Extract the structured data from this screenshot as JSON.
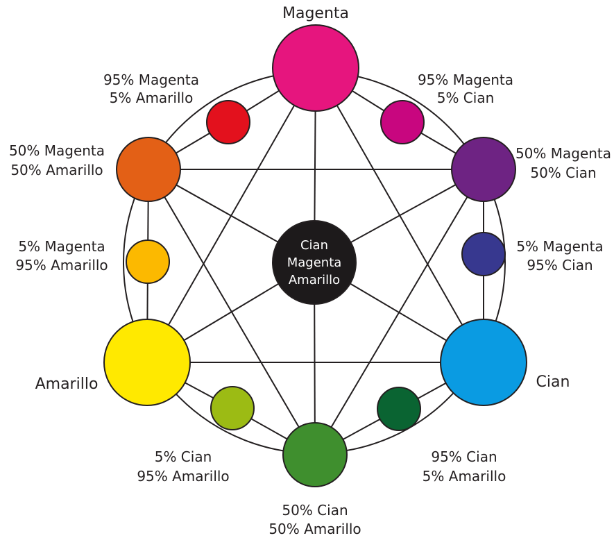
{
  "center": {
    "line1": "Cian",
    "line2": "Magenta",
    "line3": "Amarillo",
    "color": "#1d1a1b"
  },
  "nodes": {
    "magenta": {
      "line1": "Magenta",
      "color": "#e6157e"
    },
    "cian": {
      "line1": "Cian",
      "color": "#0a9be2"
    },
    "amarillo": {
      "line1": "Amarillo",
      "color": "#ffe900"
    },
    "m50_a50": {
      "line1": "50% Magenta",
      "line2": "50% Amarillo",
      "color": "#e36016"
    },
    "m50_c50": {
      "line1": "50% Magenta",
      "line2": "50% Cian",
      "color": "#6e2383"
    },
    "c50_a50": {
      "line1": "50% Cian",
      "line2": "50% Amarillo",
      "color": "#3f8f2e"
    },
    "m95_a5": {
      "line1": "95% Magenta",
      "line2": "5% Amarillo",
      "color": "#e3111d"
    },
    "m95_c5": {
      "line1": "95% Magenta",
      "line2": "5% Cian",
      "color": "#c8067f"
    },
    "m5_a95": {
      "line1": "5% Magenta",
      "line2": "95% Amarillo",
      "color": "#fcb900"
    },
    "m5_c95": {
      "line1": "5% Magenta",
      "line2": "95% Cian",
      "color": "#37388f"
    },
    "c5_a95": {
      "line1": "5% Cian",
      "line2": "95% Amarillo",
      "color": "#9cbb14"
    },
    "c95_a5": {
      "line1": "95% Cian",
      "line2": "5% Amarillo",
      "color": "#0a6432"
    }
  }
}
